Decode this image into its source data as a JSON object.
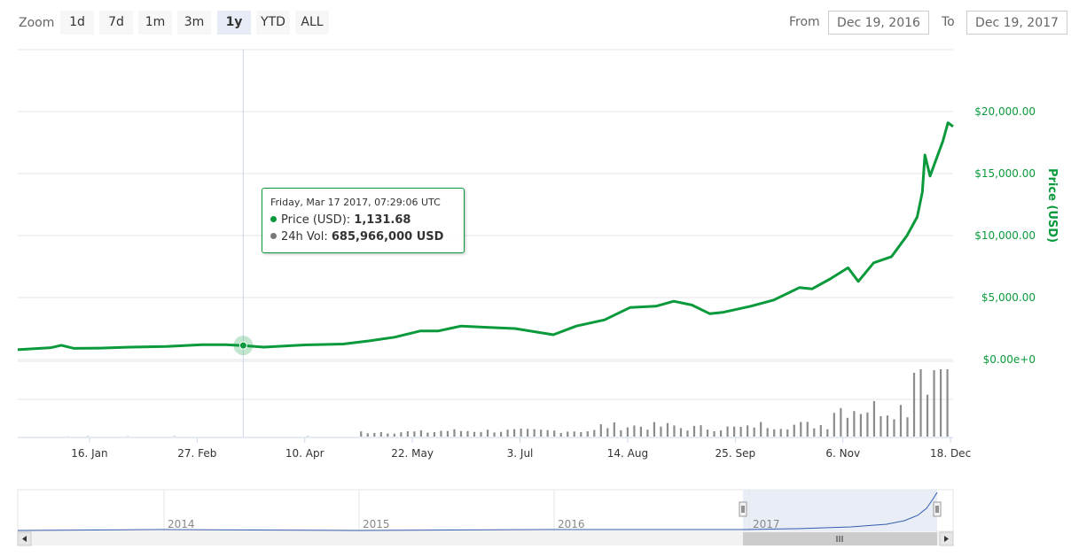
{
  "toolbar": {
    "zoom_label": "Zoom",
    "zoom_buttons": [
      "1d",
      "7d",
      "1m",
      "3m",
      "1y",
      "YTD",
      "ALL"
    ],
    "active_zoom": "1y",
    "from_label": "From",
    "from_value": "Dec 19, 2016",
    "to_label": "To",
    "to_value": "Dec 19, 2017"
  },
  "tooltip": {
    "date": "Friday, Mar 17 2017, 07:29:06 UTC",
    "price_label": "Price (USD):",
    "price_value": "1,131.68",
    "vol_label": "24h Vol:",
    "vol_value": "685,966,000 USD"
  },
  "chart_data": {
    "type": "line",
    "ylabel": "Price (USD)",
    "y_ticks": [
      "$0.00e+0",
      "$5,000.00",
      "$10,000.00",
      "$15,000.00",
      "$20,000.00"
    ],
    "y_tick_values": [
      0,
      5000,
      10000,
      15000,
      20000
    ],
    "ylim": [
      0,
      25000
    ],
    "x_ticks": [
      "16. Jan",
      "27. Feb",
      "10. Apr",
      "22. May",
      "3. Jul",
      "14. Aug",
      "25. Sep",
      "6. Nov",
      "18. Dec"
    ],
    "x_range": [
      "2016-12-19",
      "2017-12-19"
    ],
    "grid": true,
    "colors": {
      "price": "#0a9a3b",
      "volume": "#808080",
      "navigator_fill": "#e6ebf5",
      "navigator_line": "#335cad"
    },
    "series": [
      {
        "name": "Price (USD)",
        "x": [
          "2016-12-19",
          "2017-01-01",
          "2017-01-05",
          "2017-01-10",
          "2017-01-20",
          "2017-02-01",
          "2017-02-15",
          "2017-03-01",
          "2017-03-10",
          "2017-03-17",
          "2017-03-25",
          "2017-04-10",
          "2017-04-25",
          "2017-05-05",
          "2017-05-15",
          "2017-05-25",
          "2017-06-01",
          "2017-06-10",
          "2017-06-20",
          "2017-07-01",
          "2017-07-16",
          "2017-07-25",
          "2017-08-05",
          "2017-08-15",
          "2017-08-25",
          "2017-09-01",
          "2017-09-08",
          "2017-09-15",
          "2017-09-20",
          "2017-10-01",
          "2017-10-10",
          "2017-10-20",
          "2017-10-25",
          "2017-11-01",
          "2017-11-08",
          "2017-11-12",
          "2017-11-18",
          "2017-11-25",
          "2017-12-01",
          "2017-12-05",
          "2017-12-07",
          "2017-12-08",
          "2017-12-10",
          "2017-12-13",
          "2017-12-15",
          "2017-12-17",
          "2017-12-19"
        ],
        "y": [
          790,
          960,
          1150,
          900,
          920,
          1000,
          1050,
          1190,
          1200,
          1131.68,
          1000,
          1180,
          1250,
          1500,
          1800,
          2300,
          2300,
          2700,
          2600,
          2500,
          2000,
          2700,
          3200,
          4200,
          4300,
          4700,
          4400,
          3700,
          3800,
          4300,
          4800,
          5800,
          5700,
          6500,
          7400,
          6300,
          7800,
          8300,
          10000,
          11500,
          13500,
          16500,
          14800,
          16500,
          17600,
          19100,
          18800
        ]
      },
      {
        "name": "24h Vol",
        "x": [
          "2017-01",
          "2017-02",
          "2017-03",
          "2017-04",
          "2017-05",
          "2017-06",
          "2017-07",
          "2017-08",
          "2017-09",
          "2017-10",
          "2017-11",
          "2017-12"
        ],
        "y": [
          0.05,
          0.05,
          0.05,
          0.05,
          0.8,
          1.0,
          1.0,
          1.8,
          1.5,
          2.0,
          5.0,
          12.0
        ]
      }
    ],
    "navigator": {
      "x_ticks": [
        "2014",
        "2015",
        "2016",
        "2017"
      ]
    }
  }
}
